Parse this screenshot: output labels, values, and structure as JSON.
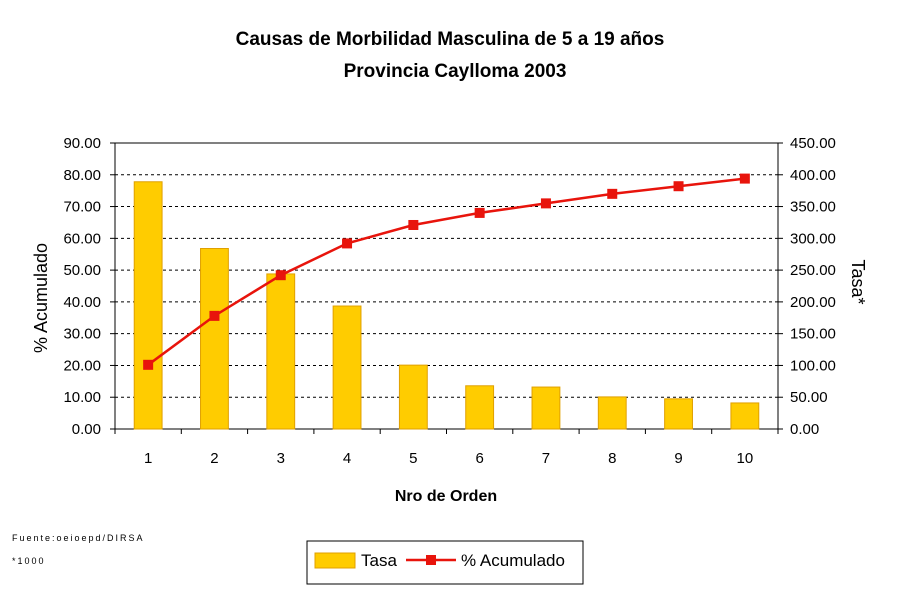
{
  "chart_data": {
    "type": "bar",
    "title": "Causas de Morbilidad Masculina de 5 a 19 años",
    "subtitle": "Provincia Caylloma 2003",
    "xlabel": "Nro de Orden",
    "ylabel_left": "% Acumulado",
    "ylabel_right": "Tasa*",
    "categories": [
      "1",
      "2",
      "3",
      "4",
      "5",
      "6",
      "7",
      "8",
      "9",
      "10"
    ],
    "left_axis": {
      "ylim": [
        0,
        90
      ],
      "ticks": [
        "0.00",
        "10.00",
        "20.00",
        "30.00",
        "40.00",
        "50.00",
        "60.00",
        "70.00",
        "80.00",
        "90.00"
      ]
    },
    "right_axis": {
      "ylim": [
        0,
        450
      ],
      "ticks": [
        "0.00",
        "50.00",
        "100.00",
        "150.00",
        "200.00",
        "250.00",
        "300.00",
        "350.00",
        "400.00",
        "450.00"
      ]
    },
    "series": [
      {
        "name": "Tasa",
        "type": "bar",
        "axis": "left",
        "color": "#FFCC00",
        "edge_color": "#E0A000",
        "values": [
          77.8,
          56.8,
          48.8,
          38.7,
          20.1,
          13.6,
          13.2,
          10.1,
          9.5,
          8.2
        ]
      },
      {
        "name": "% Acumulado",
        "type": "line",
        "axis": "right",
        "color": "#E8140C",
        "values": [
          101,
          178,
          242,
          292,
          321,
          340,
          355,
          370,
          382,
          394
        ]
      }
    ],
    "grid": "horizontal dashed",
    "legend_position": "bottom-center"
  },
  "footnotes": {
    "source": "Fuente:oeioepd/DIRSA",
    "rate_note": "*1000"
  }
}
